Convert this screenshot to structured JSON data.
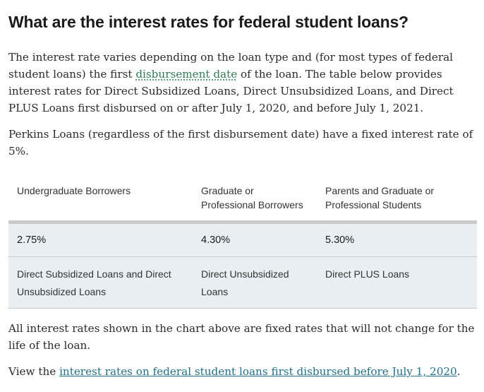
{
  "heading": "What are the interest rates for federal student loans?",
  "intro": {
    "before": "The interest rate varies depending on the loan type and (for most types of federal student loans) the first ",
    "glossary_term": "disbursement date",
    "after": " of the loan. The table below provides interest rates for Direct Subsidized Loans, Direct Unsubsidized Loans, and Direct PLUS Loans first disbursed on or after July 1, 2020, and before July 1, 2021."
  },
  "perkins": "Perkins Loans (regardless of the first disbursement date) have a fixed interest rate of 5%.",
  "table": {
    "headers": [
      "Undergraduate Borrowers",
      "Graduate or Professional Borrowers",
      "Parents and Graduate or Professional Students"
    ],
    "rates": [
      "2.75%",
      "4.30%",
      "5.30%"
    ],
    "loan_types": [
      "Direct Subsidized Loans and Direct Unsubsidized Loans",
      "Direct Unsubsidized Loans",
      "Direct PLUS Loans"
    ]
  },
  "fixed_note": "All interest rates shown in the chart above are fixed rates that will not change for the life of the loan.",
  "view": {
    "prefix": "View the ",
    "link": "interest rates on federal student loans first disbursed before July 1, 2020",
    "suffix": "."
  },
  "colors": {
    "link": "#1f6f8b",
    "glossary": "#2e7d52",
    "table_bg": "#e8eef2"
  }
}
